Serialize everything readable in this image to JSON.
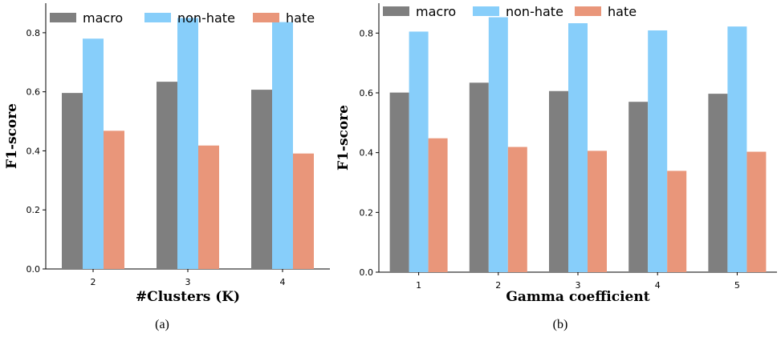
{
  "chart_data": [
    {
      "type": "bar",
      "caption": "(a)",
      "categories": [
        "2",
        "3",
        "4"
      ],
      "xlabel": "#Clusters (K)",
      "ylabel": "F1-score",
      "ylim": [
        0,
        0.9
      ],
      "yticks": [
        "0.0",
        "0.2",
        "0.4",
        "0.6",
        "0.8"
      ],
      "legend_position": "top",
      "series": [
        {
          "name": "macro",
          "color": "#7f7f7f",
          "values": [
            0.596,
            0.634,
            0.607
          ]
        },
        {
          "name": "non-hate",
          "color": "#87cefa",
          "values": [
            0.78,
            0.85,
            0.836
          ]
        },
        {
          "name": "hate",
          "color": "#e9967a",
          "values": [
            0.468,
            0.418,
            0.391
          ]
        }
      ]
    },
    {
      "type": "bar",
      "caption": "(b)",
      "categories": [
        "1",
        "2",
        "3",
        "4",
        "5"
      ],
      "xlabel": "Gamma coefficient",
      "ylabel": "F1-score",
      "ylim": [
        0,
        0.9
      ],
      "yticks": [
        "0.0",
        "0.2",
        "0.4",
        "0.6",
        "0.8"
      ],
      "legend_position": "top",
      "series": [
        {
          "name": "macro",
          "color": "#7f7f7f",
          "values": [
            0.601,
            0.634,
            0.606,
            0.57,
            0.597
          ]
        },
        {
          "name": "non-hate",
          "color": "#87cefa",
          "values": [
            0.805,
            0.853,
            0.833,
            0.809,
            0.822
          ]
        },
        {
          "name": "hate",
          "color": "#e9967a",
          "values": [
            0.448,
            0.419,
            0.406,
            0.339,
            0.403
          ]
        }
      ]
    }
  ]
}
